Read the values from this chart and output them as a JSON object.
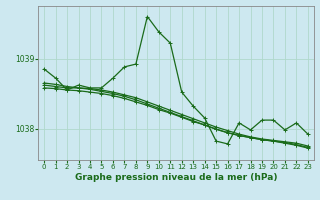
{
  "title": "Graphe pression niveau de la mer (hPa)",
  "background_color": "#cde8f0",
  "grid_color": "#b0d8cc",
  "line_color": "#1a6b1a",
  "xlim": [
    -0.5,
    23.5
  ],
  "ylim": [
    1037.55,
    1039.75
  ],
  "yticks": [
    1038,
    1039
  ],
  "xticks": [
    0,
    1,
    2,
    3,
    4,
    5,
    6,
    7,
    8,
    9,
    10,
    11,
    12,
    13,
    14,
    15,
    16,
    17,
    18,
    19,
    20,
    21,
    22,
    23
  ],
  "lines": [
    {
      "x": [
        0,
        1,
        2,
        3,
        4,
        5,
        6,
        7,
        8,
        9,
        10,
        11,
        12,
        13,
        14,
        15,
        16,
        17,
        18,
        19,
        20,
        21,
        22,
        23
      ],
      "y": [
        1038.85,
        1038.72,
        1038.55,
        1038.62,
        1038.58,
        1038.58,
        1038.72,
        1038.88,
        1038.92,
        1039.6,
        1039.38,
        1039.22,
        1038.52,
        1038.32,
        1038.15,
        1037.82,
        1037.78,
        1038.08,
        1037.98,
        1038.12,
        1038.12,
        1037.98,
        1038.08,
        1037.92
      ]
    },
    {
      "x": [
        0,
        1,
        2,
        3,
        4,
        5,
        6,
        7,
        8,
        9,
        10,
        11,
        12,
        13,
        14,
        15,
        16,
        17,
        18,
        19,
        20,
        21,
        22,
        23
      ],
      "y": [
        1038.62,
        1038.6,
        1038.58,
        1038.58,
        1038.57,
        1038.55,
        1038.52,
        1038.48,
        1038.44,
        1038.38,
        1038.32,
        1038.26,
        1038.2,
        1038.14,
        1038.08,
        1038.02,
        1037.97,
        1037.92,
        1037.88,
        1037.85,
        1037.83,
        1037.81,
        1037.79,
        1037.75
      ]
    },
    {
      "x": [
        0,
        1,
        2,
        3,
        4,
        5,
        6,
        7,
        8,
        9,
        10,
        11,
        12,
        13,
        14,
        15,
        16,
        17,
        18,
        19,
        20,
        21,
        22,
        23
      ],
      "y": [
        1038.58,
        1038.57,
        1038.55,
        1038.54,
        1038.52,
        1038.5,
        1038.47,
        1038.43,
        1038.38,
        1038.33,
        1038.27,
        1038.22,
        1038.16,
        1038.1,
        1038.05,
        1037.99,
        1037.94,
        1037.9,
        1037.87,
        1037.84,
        1037.82,
        1037.8,
        1037.77,
        1037.73
      ]
    },
    {
      "x": [
        0,
        1,
        2,
        3,
        4,
        5,
        6,
        7,
        8,
        9,
        10,
        11,
        12,
        13,
        14,
        15,
        16,
        17,
        18,
        19,
        20,
        21,
        22,
        23
      ],
      "y": [
        1038.65,
        1038.63,
        1038.6,
        1038.58,
        1038.56,
        1038.53,
        1038.5,
        1038.46,
        1038.41,
        1038.35,
        1038.29,
        1038.23,
        1038.17,
        1038.11,
        1038.05,
        1037.99,
        1037.94,
        1037.9,
        1037.87,
        1037.84,
        1037.82,
        1037.79,
        1037.76,
        1037.72
      ]
    }
  ]
}
